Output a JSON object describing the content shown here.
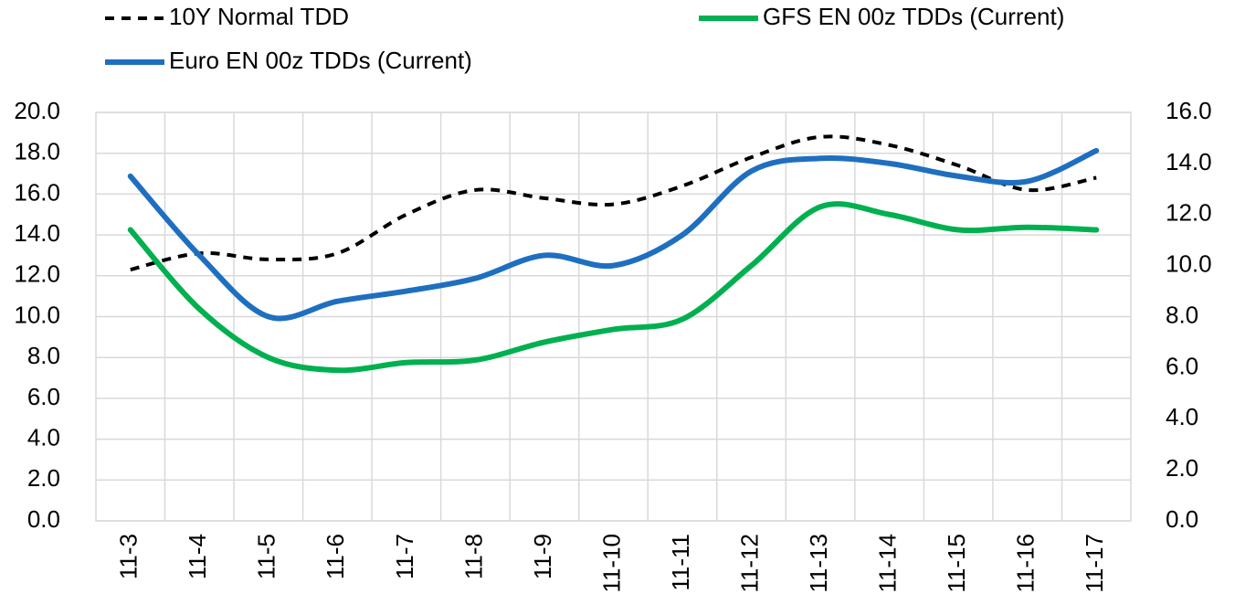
{
  "chart_data": {
    "type": "line",
    "categories": [
      "11-3",
      "11-4",
      "11-5",
      "11-6",
      "11-7",
      "11-8",
      "11-9",
      "11-10",
      "11-11",
      "11-12",
      "11-13",
      "11-14",
      "11-15",
      "11-16",
      "11-17"
    ],
    "series": [
      {
        "name": "10Y Normal TDD",
        "color": "#000000",
        "dash": true,
        "values": [
          12.3,
          13.1,
          12.8,
          13.1,
          15.0,
          16.2,
          15.8,
          15.5,
          16.4,
          17.8,
          18.8,
          18.4,
          17.4,
          16.2,
          16.8
        ]
      },
      {
        "name": "GFS EN 00z TDDs (Current)",
        "color": "#00b050",
        "axis": "y2",
        "values": [
          11.4,
          8.3,
          6.4,
          5.9,
          6.2,
          6.3,
          7.0,
          7.5,
          7.9,
          10.0,
          12.3,
          12.0,
          11.4,
          11.5,
          11.4
        ]
      },
      {
        "name": "Euro EN 00z TDDs (Current)",
        "color": "#1f6fc0",
        "axis": "y2",
        "values": [
          13.5,
          10.4,
          8.0,
          8.6,
          9.0,
          9.5,
          10.4,
          10.0,
          11.2,
          13.7,
          14.2,
          14.0,
          13.5,
          13.3,
          14.5
        ]
      }
    ],
    "ylim": [
      0,
      20
    ],
    "yticks": [
      {
        "value": 0,
        "label": "0.0"
      },
      {
        "value": 2,
        "label": "2.0"
      },
      {
        "value": 4,
        "label": "4.0"
      },
      {
        "value": 6,
        "label": "6.0"
      },
      {
        "value": 8,
        "label": "8.0"
      },
      {
        "value": 10,
        "label": "10.0"
      },
      {
        "value": 12,
        "label": "12.0"
      },
      {
        "value": 14,
        "label": "14.0"
      },
      {
        "value": 16,
        "label": "16.0"
      },
      {
        "value": 18,
        "label": "18.0"
      },
      {
        "value": 20,
        "label": "20.0"
      }
    ],
    "y2lim": [
      0,
      16
    ],
    "y2ticks": [
      {
        "value": 0,
        "label": "0.0"
      },
      {
        "value": 2,
        "label": "2.0"
      },
      {
        "value": 4,
        "label": "4.0"
      },
      {
        "value": 6,
        "label": "6.0"
      },
      {
        "value": 8,
        "label": "8.0"
      },
      {
        "value": 10,
        "label": "10.0"
      },
      {
        "value": 12,
        "label": "12.0"
      },
      {
        "value": 14,
        "label": "14.0"
      },
      {
        "value": 16,
        "label": "16.0"
      }
    ],
    "grid": true
  }
}
